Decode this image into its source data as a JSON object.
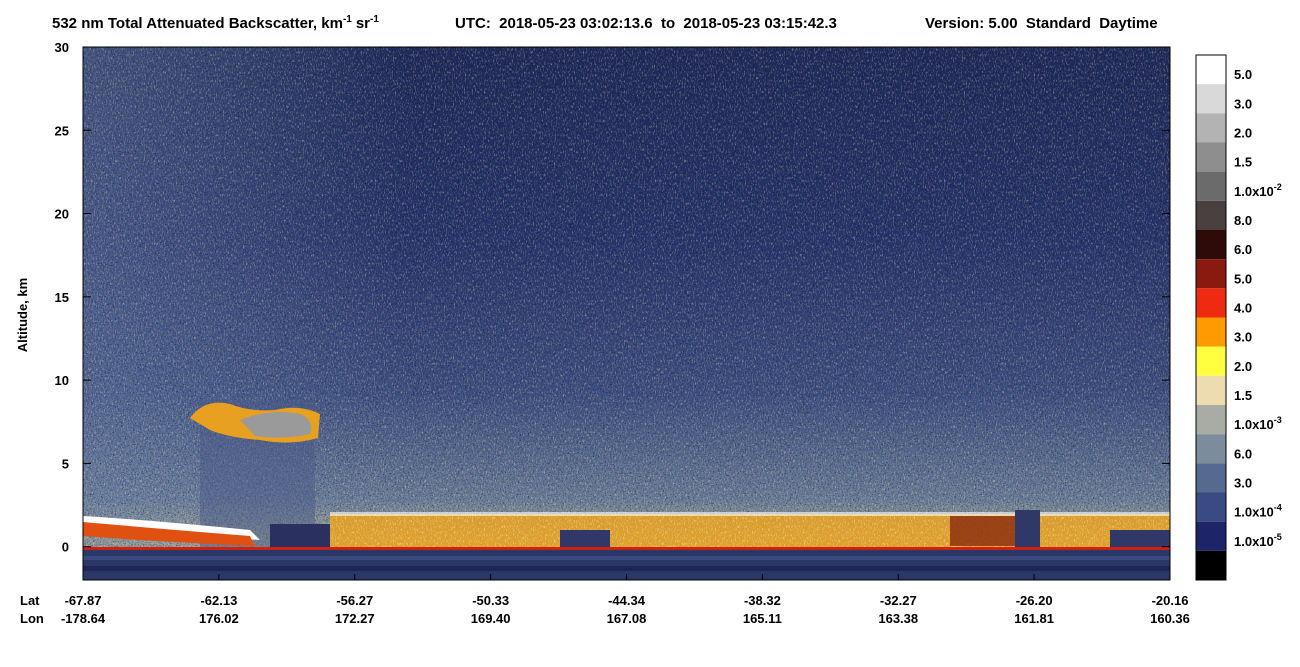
{
  "chart_data": {
    "type": "heatmap",
    "title": {
      "main": "532 nm Total Attenuated Backscatter, km",
      "exp1": "-1",
      "unit2": "sr",
      "exp2": "-1",
      "time": "UTC:  2018-05-23 03:02:13.6  to  2018-05-23 03:15:42.3",
      "version": "Version: 5.00  Standard  Daytime"
    },
    "y_label": "Altitude, km",
    "ylim": [
      -2,
      30
    ],
    "yticks": [
      0,
      5,
      10,
      15,
      20,
      25,
      30
    ],
    "x_rows": [
      {
        "name": "Lat",
        "labels": [
          "-67.87",
          "-62.13",
          "-56.27",
          "-50.33",
          "-44.34",
          "-38.32",
          "-32.27",
          "-26.20",
          "-20.16"
        ]
      },
      {
        "name": "Lon",
        "labels": [
          "-178.64",
          "176.02",
          "172.27",
          "169.40",
          "167.08",
          "165.11",
          "163.38",
          "161.81",
          "160.36"
        ]
      }
    ],
    "colorbar": {
      "colors": [
        "#ffffff",
        "#d9d9d9",
        "#b3b3b3",
        "#8e8e8e",
        "#6b6b6b",
        "#4a4040",
        "#2e0a08",
        "#8a1a10",
        "#ee2a10",
        "#ff9a00",
        "#ffff40",
        "#ecdcb0",
        "#a9aca4",
        "#7d8c9c",
        "#566a90",
        "#3a4a82",
        "#1e2468",
        "#000000"
      ],
      "labels": [
        {
          "text": "5.0"
        },
        {
          "text": "3.0"
        },
        {
          "text": "2.0"
        },
        {
          "text": "1.5"
        },
        {
          "text": "1.0x10",
          "exp": "-2"
        },
        {
          "text": "8.0"
        },
        {
          "text": "6.0"
        },
        {
          "text": "5.0"
        },
        {
          "text": "4.0"
        },
        {
          "text": "3.0"
        },
        {
          "text": "2.0"
        },
        {
          "text": "1.5"
        },
        {
          "text": "1.0x10",
          "exp": "-3"
        },
        {
          "text": "6.0"
        },
        {
          "text": "3.0"
        },
        {
          "text": "1.0x10",
          "exp": "-4"
        },
        {
          "text": "1.0x10",
          "exp": "-5"
        }
      ]
    }
  }
}
